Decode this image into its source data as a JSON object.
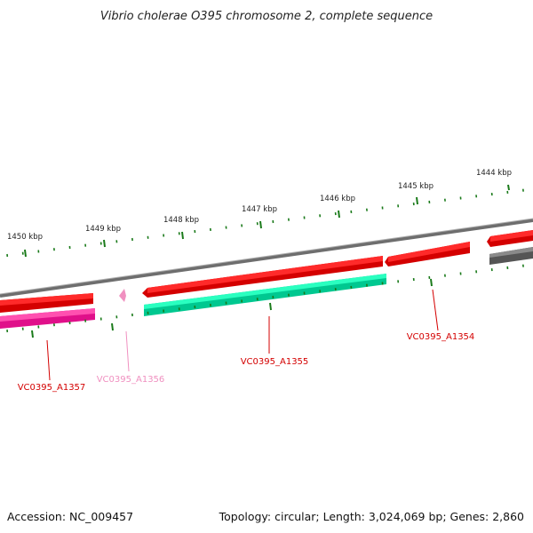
{
  "title": "Vibrio cholerae O395 chromosome 2, complete sequence",
  "footer": {
    "accession": "Accession: NC_009457",
    "summary": "Topology: circular; Length: 3,024,069 bp; Genes: 2,860"
  },
  "scale": {
    "tick_labels": [
      "1444 kbp",
      "1445 kbp",
      "1446 kbp",
      "1447 kbp",
      "1448 kbp",
      "1449 kbp",
      "1450 kbp"
    ]
  },
  "genes": [
    {
      "id": "VC0395_A1354",
      "label": "VC0395_A1354",
      "color": "#d40000",
      "strand": "forward"
    },
    {
      "id": "VC0395_A1355",
      "label": "VC0395_A1355",
      "color": "#d40000",
      "strand": "reverse-complement"
    },
    {
      "id": "VC0395_A1356",
      "label": "VC0395_A1356",
      "color": "#f090c0",
      "strand": "forward"
    },
    {
      "id": "VC0395_A1357",
      "label": "VC0395_A1357",
      "color": "#d40000",
      "strand": "forward"
    }
  ],
  "colors": {
    "backbone": "#808080",
    "tick": "#1a7a1a",
    "forward_gene": "#ff1a1a",
    "reverse_gene": "#00e0a0",
    "magenta_gene": "#e0108a",
    "gray_gene": "#555555"
  }
}
